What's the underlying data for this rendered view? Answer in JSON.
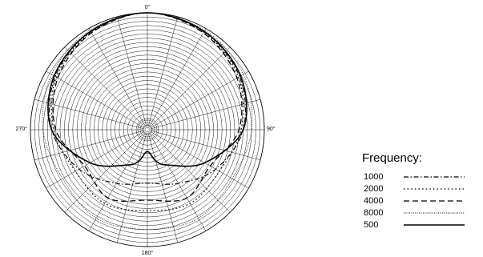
{
  "chart_data": {
    "type": "polar",
    "title": "",
    "angle_labels": [
      "0°",
      "90°",
      "180°",
      "270°"
    ],
    "radial_range_db": [
      -25,
      0
    ],
    "radial_ring_step_db": 1,
    "spoke_step_deg": 15,
    "grid": true,
    "legend": {
      "title": "Frequency:",
      "placement": "right"
    },
    "series": [
      {
        "name": "1000",
        "style": "dash-dot",
        "color": "#000000",
        "angles_deg": [
          0,
          30,
          60,
          90,
          120,
          150,
          180,
          210,
          240,
          270,
          300,
          330
        ],
        "values_db": [
          0,
          -0.8,
          -2.5,
          -5,
          -9,
          -13,
          -15,
          -13,
          -9,
          -5,
          -2.5,
          -0.8
        ]
      },
      {
        "name": "2000",
        "style": "dotted",
        "color": "#000000",
        "angles_deg": [
          0,
          30,
          60,
          90,
          120,
          150,
          180,
          210,
          240,
          270,
          300,
          330
        ],
        "values_db": [
          0,
          -1,
          -2.8,
          -5.5,
          -8,
          -7.5,
          -8.5,
          -7.5,
          -8,
          -5.5,
          -2.8,
          -1
        ]
      },
      {
        "name": "4000",
        "style": "dashed",
        "color": "#000000",
        "angles_deg": [
          0,
          30,
          60,
          90,
          120,
          150,
          180,
          210,
          240,
          270,
          300,
          330
        ],
        "values_db": [
          0,
          -1.2,
          -3.2,
          -6,
          -10.5,
          -9,
          -11,
          -9,
          -10.5,
          -6,
          -3.2,
          -1.2
        ]
      },
      {
        "name": "8000",
        "style": "fine-dotted",
        "color": "#000000",
        "angles_deg": [
          0,
          30,
          60,
          90,
          120,
          150,
          180,
          210,
          240,
          270,
          300,
          330
        ],
        "values_db": [
          0,
          -0.5,
          -1.5,
          -3,
          -4.5,
          -3.5,
          -4,
          -3.5,
          -4.5,
          -3,
          -1.5,
          -0.5
        ]
      },
      {
        "name": "500",
        "style": "solid",
        "color": "#000000",
        "angles_deg": [
          0,
          30,
          60,
          90,
          120,
          150,
          165,
          180,
          195,
          210,
          240,
          270,
          300,
          330
        ],
        "values_db": [
          0,
          -0.8,
          -2.2,
          -5,
          -12,
          -18,
          -20,
          -22.5,
          -20,
          -18,
          -12,
          -5,
          -2.2,
          -0.8
        ]
      }
    ]
  }
}
